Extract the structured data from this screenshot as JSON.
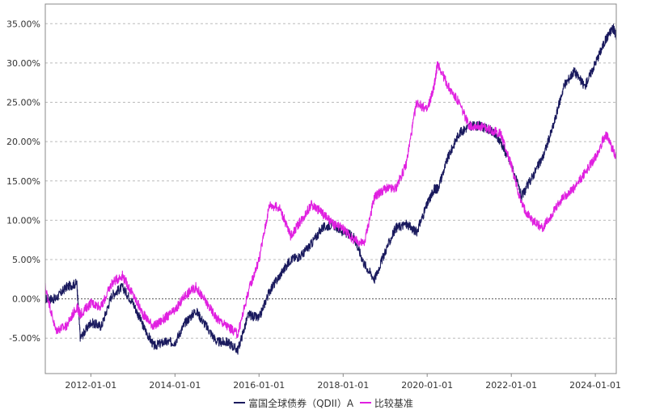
{
  "chart_data": {
    "type": "line",
    "title": "",
    "xlabel": "",
    "ylabel": "",
    "ylim": [
      -0.095,
      0.375
    ],
    "yticks": [
      -0.05,
      0.0,
      0.05,
      0.1,
      0.15,
      0.2,
      0.25,
      0.3,
      0.35
    ],
    "ytick_labels": [
      "-5.00%",
      "0.00%",
      "5.00%",
      "10.00%",
      "15.00%",
      "20.00%",
      "25.00%",
      "30.00%",
      "35.00%"
    ],
    "xlim": [
      "2010-12-01",
      "2024-07-01"
    ],
    "xtick_labels": [
      "2012-01-01",
      "2014-01-01",
      "2016-01-01",
      "2018-01-01",
      "2020-01-01",
      "2022-01-01",
      "2024-01-01"
    ],
    "grid": true,
    "zero_line": true,
    "legend_position": "bottom",
    "series": [
      {
        "name": "富国全球债券（QDII）A",
        "color": "#1a1a5e",
        "x": [
          "2010-12-01",
          "2011-03-01",
          "2011-06-01",
          "2011-09-01",
          "2011-10-01",
          "2012-01-01",
          "2012-04-01",
          "2012-07-01",
          "2012-10-01",
          "2013-01-01",
          "2013-04-01",
          "2013-07-01",
          "2013-10-01",
          "2014-01-01",
          "2014-04-01",
          "2014-07-01",
          "2014-10-01",
          "2015-01-01",
          "2015-04-01",
          "2015-07-01",
          "2015-10-01",
          "2016-01-01",
          "2016-04-01",
          "2016-07-01",
          "2016-10-01",
          "2017-01-01",
          "2017-04-01",
          "2017-07-01",
          "2017-10-01",
          "2018-01-01",
          "2018-04-01",
          "2018-07-01",
          "2018-10-01",
          "2019-01-01",
          "2019-04-01",
          "2019-07-01",
          "2019-10-01",
          "2020-01-01",
          "2020-03-01",
          "2020-04-01",
          "2020-07-01",
          "2020-10-01",
          "2021-01-01",
          "2021-04-01",
          "2021-07-01",
          "2021-10-01",
          "2022-01-01",
          "2022-04-01",
          "2022-07-01",
          "2022-10-01",
          "2023-01-01",
          "2023-04-01",
          "2023-07-01",
          "2023-10-01",
          "2024-01-01",
          "2024-04-01",
          "2024-06-01",
          "2024-07-01"
        ],
        "values": [
          0.0,
          0.0,
          0.015,
          0.02,
          -0.05,
          -0.03,
          -0.035,
          0.005,
          0.015,
          -0.005,
          -0.035,
          -0.06,
          -0.055,
          -0.055,
          -0.03,
          -0.015,
          -0.035,
          -0.055,
          -0.055,
          -0.065,
          -0.02,
          -0.025,
          0.01,
          0.03,
          0.05,
          0.055,
          0.07,
          0.09,
          0.095,
          0.085,
          0.08,
          0.045,
          0.025,
          0.06,
          0.09,
          0.095,
          0.085,
          0.12,
          0.14,
          0.14,
          0.18,
          0.21,
          0.22,
          0.22,
          0.215,
          0.2,
          0.17,
          0.13,
          0.155,
          0.18,
          0.22,
          0.27,
          0.29,
          0.27,
          0.3,
          0.33,
          0.345,
          0.335
        ]
      },
      {
        "name": "比较基准",
        "color": "#e020e0",
        "x": [
          "2010-12-01",
          "2011-03-01",
          "2011-06-01",
          "2011-09-01",
          "2011-10-01",
          "2012-01-01",
          "2012-04-01",
          "2012-07-01",
          "2012-10-01",
          "2013-01-01",
          "2013-04-01",
          "2013-07-01",
          "2013-10-01",
          "2014-01-01",
          "2014-04-01",
          "2014-07-01",
          "2014-10-01",
          "2015-01-01",
          "2015-04-01",
          "2015-07-01",
          "2015-10-01",
          "2016-01-01",
          "2016-04-01",
          "2016-07-01",
          "2016-10-01",
          "2017-01-01",
          "2017-04-01",
          "2017-07-01",
          "2017-10-01",
          "2018-01-01",
          "2018-04-01",
          "2018-07-01",
          "2018-10-01",
          "2019-01-01",
          "2019-04-01",
          "2019-07-01",
          "2019-10-01",
          "2020-01-01",
          "2020-03-01",
          "2020-04-01",
          "2020-07-01",
          "2020-10-01",
          "2021-01-01",
          "2021-04-01",
          "2021-07-01",
          "2021-10-01",
          "2022-01-01",
          "2022-04-01",
          "2022-07-01",
          "2022-10-01",
          "2023-01-01",
          "2023-04-01",
          "2023-07-01",
          "2023-10-01",
          "2024-01-01",
          "2024-04-01",
          "2024-06-01",
          "2024-07-01"
        ],
        "values": [
          0.015,
          -0.04,
          -0.035,
          -0.01,
          -0.02,
          -0.005,
          -0.01,
          0.02,
          0.03,
          0.005,
          -0.02,
          -0.035,
          -0.025,
          -0.015,
          0.005,
          0.015,
          -0.005,
          -0.025,
          -0.035,
          -0.045,
          0.01,
          0.05,
          0.12,
          0.115,
          0.08,
          0.1,
          0.12,
          0.11,
          0.095,
          0.09,
          0.075,
          0.07,
          0.13,
          0.14,
          0.14,
          0.17,
          0.25,
          0.24,
          0.27,
          0.3,
          0.27,
          0.25,
          0.22,
          0.22,
          0.215,
          0.21,
          0.17,
          0.12,
          0.1,
          0.09,
          0.11,
          0.13,
          0.14,
          0.16,
          0.18,
          0.21,
          0.19,
          0.18
        ]
      }
    ]
  }
}
